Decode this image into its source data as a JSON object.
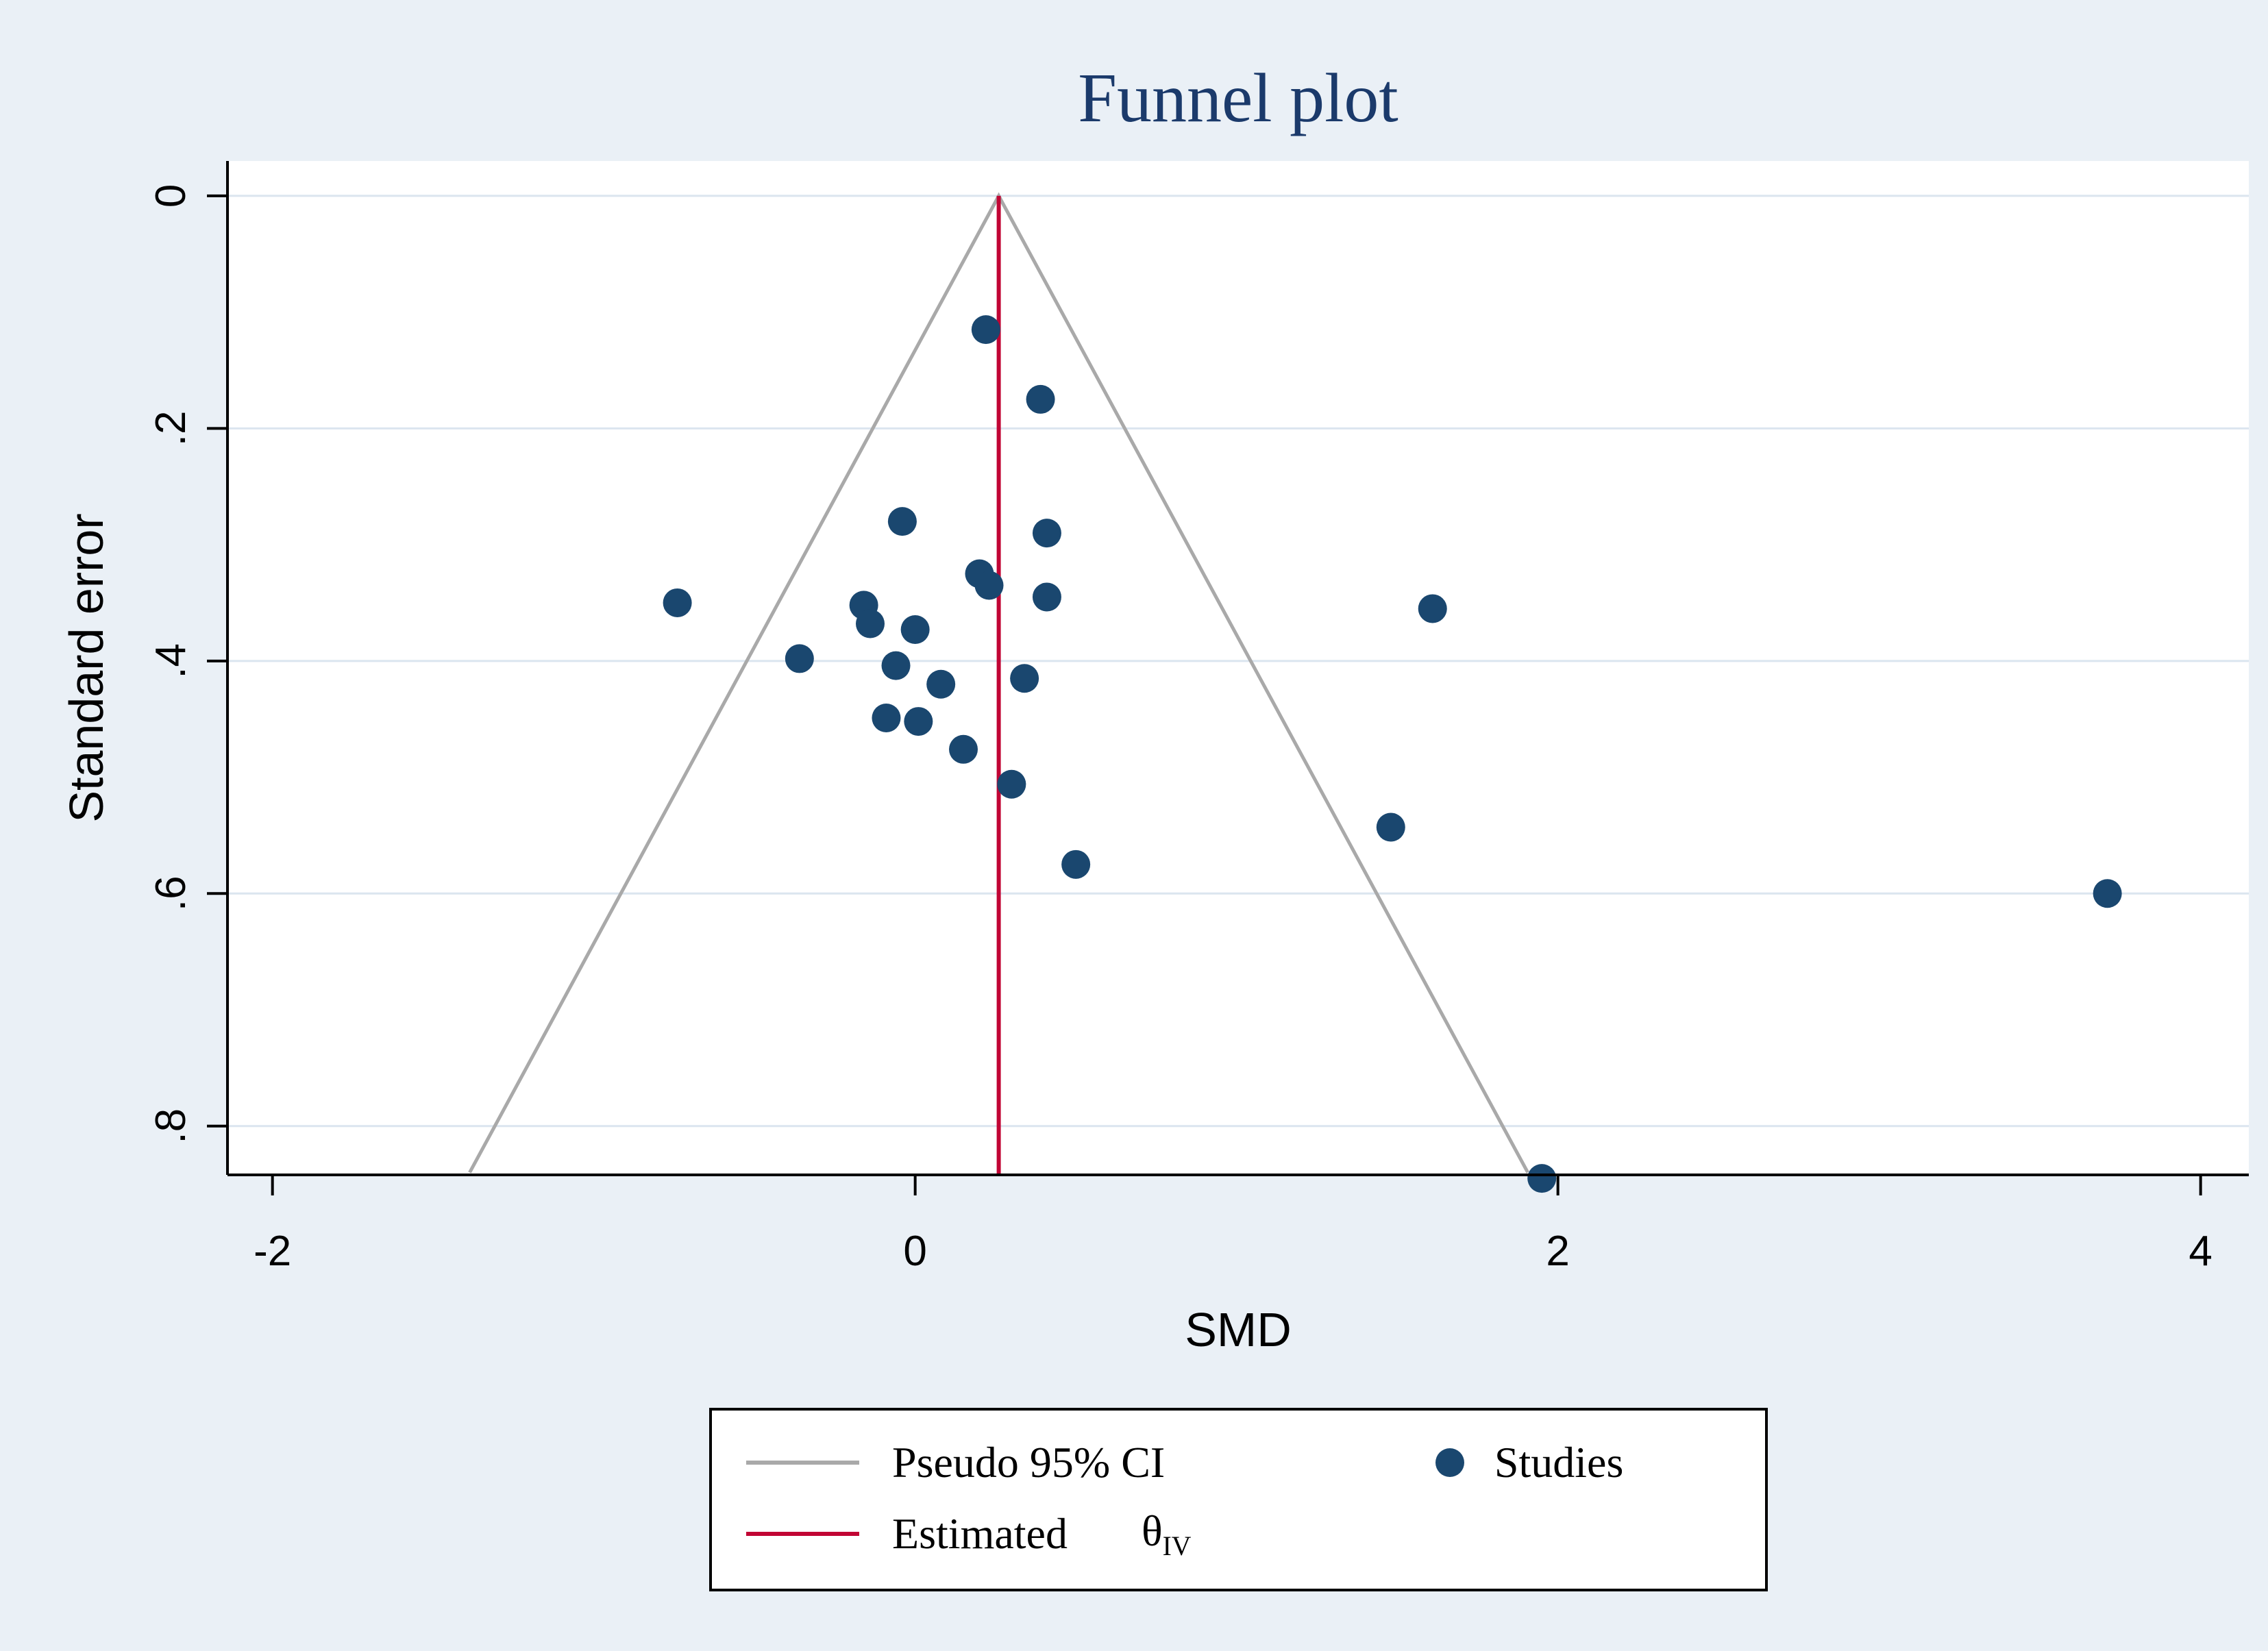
{
  "figure": {
    "title": "Funnel plot",
    "title_color": "#1b3a6b",
    "background_color": "#eaf0f6",
    "plot_background": "#ffffff"
  },
  "legend": {
    "pseudo_ci_label": "Pseudo 95% CI",
    "studies_label": "Studies",
    "estimated_label": "Estimated",
    "theta_symbol": "θ",
    "theta_subscript": "IV",
    "ci_line_color": "#a9a9a9",
    "estimate_line_color": "#c10534",
    "marker_color": "#1a476f"
  },
  "chart_data": {
    "type": "scatter",
    "title": "Funnel plot",
    "xlabel": "SMD",
    "ylabel": "Standard error",
    "x_ticks": {
      "values": [
        -2,
        0,
        2,
        4
      ],
      "labels": [
        "-2",
        "0",
        "2",
        "4"
      ]
    },
    "y_ticks": {
      "values": [
        0,
        0.2,
        0.4,
        0.6,
        0.8
      ],
      "labels": [
        "0",
        ".2",
        ".4",
        ".6",
        ".8"
      ]
    },
    "xlim": [
      -2.14,
      4.15
    ],
    "ylim": [
      -0.03,
      0.842
    ],
    "y_axis_inverted": true,
    "grid": "horizontal",
    "estimate_smd": 0.26,
    "ci_multiplier": 1.96,
    "funnel_base_se": 0.84,
    "series": [
      {
        "name": "Studies",
        "marker": "circle",
        "color": "#1a476f",
        "points": [
          {
            "smd": 0.22,
            "se": 0.115
          },
          {
            "smd": 0.39,
            "se": 0.175
          },
          {
            "smd": -0.04,
            "se": 0.28
          },
          {
            "smd": 0.41,
            "se": 0.29
          },
          {
            "smd": 0.2,
            "se": 0.325
          },
          {
            "smd": 0.23,
            "se": 0.335
          },
          {
            "smd": 0.41,
            "se": 0.345
          },
          {
            "smd": -0.74,
            "se": 0.35
          },
          {
            "smd": -0.16,
            "se": 0.352
          },
          {
            "smd": 1.61,
            "se": 0.355
          },
          {
            "smd": -0.14,
            "se": 0.368
          },
          {
            "smd": 0.0,
            "se": 0.373
          },
          {
            "smd": -0.36,
            "se": 0.398
          },
          {
            "smd": -0.06,
            "se": 0.404
          },
          {
            "smd": 0.34,
            "se": 0.415
          },
          {
            "smd": 0.08,
            "se": 0.42
          },
          {
            "smd": -0.09,
            "se": 0.449
          },
          {
            "smd": 0.01,
            "se": 0.452
          },
          {
            "smd": 0.15,
            "se": 0.476
          },
          {
            "smd": 0.3,
            "se": 0.506
          },
          {
            "smd": 1.48,
            "se": 0.543
          },
          {
            "smd": 0.5,
            "se": 0.575
          },
          {
            "smd": 3.71,
            "se": 0.6
          },
          {
            "smd": 1.95,
            "se": 0.845
          }
        ]
      }
    ]
  }
}
